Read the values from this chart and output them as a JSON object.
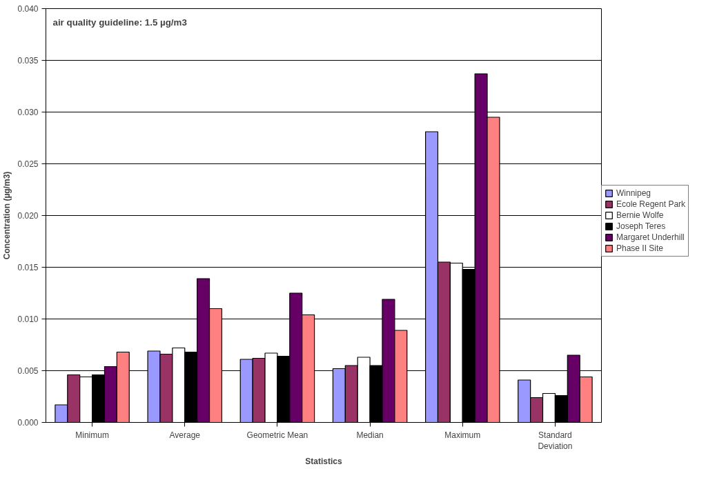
{
  "chart_data": {
    "type": "bar",
    "xlabel": "Statistics",
    "ylabel": "Concentration (µg/m3)",
    "annotations": [
      "air quality guideline: 1.5 µg/m3"
    ],
    "categories": [
      "Minimum",
      "Average",
      "Geometric Mean",
      "Median",
      "Maximum",
      "Standard Deviation"
    ],
    "series": [
      {
        "name": "Winnipeg",
        "color": "#9999ff",
        "values": [
          0.0017,
          0.0069,
          0.0061,
          0.0052,
          0.0281,
          0.0041
        ]
      },
      {
        "name": "Ecole Regent Park",
        "color": "#993366",
        "values": [
          0.0046,
          0.0066,
          0.0062,
          0.0055,
          0.0155,
          0.0024
        ]
      },
      {
        "name": "Bernie Wolfe",
        "color": "#ffffff",
        "values": [
          0.0044,
          0.0072,
          0.0067,
          0.0063,
          0.0154,
          0.0028
        ]
      },
      {
        "name": "Joseph Teres",
        "color": "#000000",
        "values": [
          0.0046,
          0.0068,
          0.0064,
          0.0055,
          0.0148,
          0.0026
        ]
      },
      {
        "name": "Margaret Underhill",
        "color": "#660066",
        "values": [
          0.0054,
          0.0139,
          0.0125,
          0.0119,
          0.0337,
          0.0065
        ]
      },
      {
        "name": "Phase II Site",
        "color": "#ff8080",
        "values": [
          0.0068,
          0.011,
          0.0104,
          0.0089,
          0.0295,
          0.0044
        ]
      }
    ],
    "ylim": [
      0,
      0.04
    ],
    "yticks": [
      {
        "value": 0,
        "label": "0.000"
      },
      {
        "value": 0.005,
        "label": "0.005"
      },
      {
        "value": 0.01,
        "label": "0.010"
      },
      {
        "value": 0.015,
        "label": "0.015"
      },
      {
        "value": 0.02,
        "label": "0.020"
      },
      {
        "value": 0.025,
        "label": "0.025"
      },
      {
        "value": 0.03,
        "label": "0.030"
      },
      {
        "value": 0.035,
        "label": "0.035"
      },
      {
        "value": 0.04,
        "label": "0.040"
      }
    ],
    "grid": "y",
    "legend": "right"
  }
}
